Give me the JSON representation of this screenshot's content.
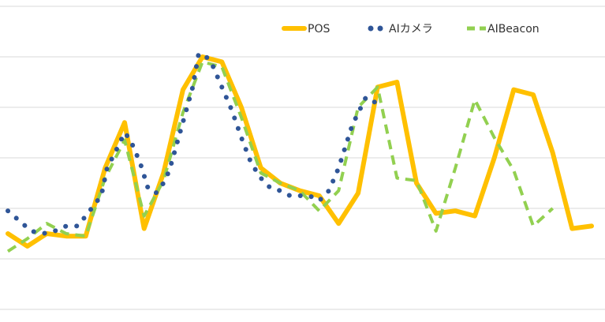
{
  "chart_data": {
    "type": "line",
    "x": [
      1,
      2,
      3,
      4,
      5,
      6,
      7,
      8,
      9,
      10,
      11,
      12,
      13,
      14,
      15,
      16,
      17,
      18,
      19,
      20,
      21,
      22,
      23,
      24,
      25,
      26,
      27,
      28,
      29,
      30,
      31,
      32,
      33,
      34,
      35,
      36,
      37,
      38,
      39
    ],
    "ylim": [
      0,
      6
    ],
    "grid": true,
    "legend": "top-right",
    "series": [
      {
        "name": "POS",
        "color": "#FFC000",
        "style": "solid",
        "values": [
          1.5,
          1.25,
          1.5,
          1.45,
          1.45,
          2.8,
          3.7,
          1.6,
          2.7,
          4.35,
          5.0,
          4.9,
          4.0,
          2.8,
          2.5,
          2.35,
          2.25,
          1.7,
          2.3,
          4.4,
          4.5,
          2.5,
          1.9,
          1.95,
          1.85,
          3.0,
          4.35,
          4.25,
          3.1,
          1.6,
          1.65
        ],
        "x": [
          1,
          2,
          3,
          4,
          5,
          6,
          7,
          8,
          9,
          10,
          11,
          12,
          13,
          14,
          15,
          16,
          17,
          18,
          19,
          20,
          21,
          22,
          23,
          24,
          25,
          26,
          27,
          28,
          29,
          30,
          31
        ]
      },
      {
        "name": "AIカメラ",
        "color": "#2F5597",
        "style": "dotted",
        "values": [
          1.95,
          1.75,
          1.55,
          1.5,
          1.55,
          1.65,
          1.65,
          1.95,
          2.25,
          2.8,
          3.1,
          3.5,
          3.35,
          2.9,
          2.4,
          2.3,
          2.5,
          2.75,
          3.3,
          3.85,
          4.4,
          5.05,
          5.05,
          4.85,
          4.4,
          3.95,
          3.4,
          2.9,
          2.6,
          2.4,
          2.35,
          2.25,
          2.25,
          2.25,
          2.15,
          2.35,
          2.8,
          3.65,
          4.2,
          4.05
        ],
        "x": [
          1,
          1.6,
          2.2,
          2.8,
          3.4,
          4.0,
          4.6,
          5.2,
          5.8,
          6.1,
          6.5,
          7.0,
          7.3,
          7.8,
          8.2,
          8.6,
          9.0,
          9.3,
          9.7,
          10.1,
          10.5,
          10.8,
          11.1,
          11.5,
          12.0,
          12.5,
          13.0,
          13.5,
          14.0,
          14.5,
          15.0,
          15.5,
          16.0,
          16.5,
          17.0,
          17.5,
          18.0,
          18.7,
          19.4,
          20.1
        ]
      },
      {
        "name": "AIBeacon",
        "color": "#92D050",
        "style": "dashed",
        "values": [
          1.15,
          1.4,
          1.7,
          1.5,
          1.45,
          2.6,
          3.35,
          1.85,
          2.55,
          3.9,
          4.9,
          4.8,
          3.8,
          2.7,
          2.5,
          2.35,
          1.95,
          2.35,
          4.0,
          4.4,
          2.6,
          2.55,
          1.55,
          2.8,
          4.15,
          3.4,
          2.75,
          1.65,
          2.0
        ],
        "x": [
          1,
          2,
          3,
          4,
          5,
          6,
          7,
          8,
          9,
          10,
          11,
          12,
          13,
          14,
          15,
          16,
          17,
          18,
          19,
          20,
          21,
          22,
          23,
          24,
          25,
          26,
          27,
          28,
          29
        ]
      }
    ]
  }
}
